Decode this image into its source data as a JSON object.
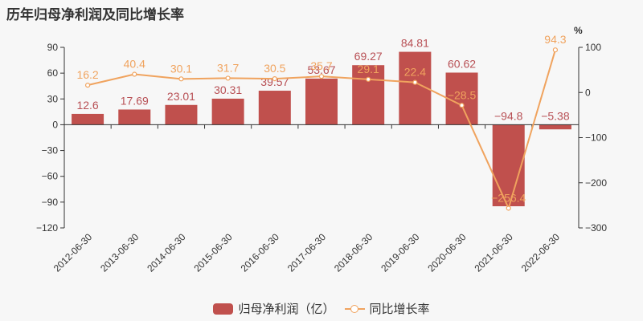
{
  "title": "历年归母净利润及同比增长率",
  "colors": {
    "bar": "#c0504d",
    "line": "#f0a35e",
    "bar_label": "#b85055",
    "axis": "#333333"
  },
  "legend": {
    "bar_label": "归母净利润（亿）",
    "line_label": "同比增长率"
  },
  "right_axis_unit": "%",
  "chart_data": {
    "type": "bar+line",
    "title": "历年归母净利润及同比增长率",
    "categories": [
      "2012-06-30",
      "2013-06-30",
      "2014-06-30",
      "2015-06-30",
      "2016-06-30",
      "2017-06-30",
      "2018-06-30",
      "2019-06-30",
      "2020-06-30",
      "2021-06-30",
      "2022-06-30"
    ],
    "series": [
      {
        "name": "归母净利润（亿）",
        "type": "bar",
        "axis": "left",
        "values": [
          12.6,
          17.69,
          23.01,
          30.31,
          39.57,
          53.67,
          69.27,
          84.81,
          60.62,
          -94.8,
          -5.38
        ]
      },
      {
        "name": "同比增长率",
        "type": "line",
        "axis": "right",
        "values": [
          16.2,
          40.4,
          30.1,
          31.7,
          30.5,
          35.7,
          29.1,
          22.4,
          -28.5,
          -256.4,
          94.3
        ]
      }
    ],
    "left_axis": {
      "min": -120,
      "max": 90,
      "ticks": [
        90,
        60,
        30,
        0,
        -30,
        -60,
        -90,
        -120
      ]
    },
    "right_axis": {
      "min": -300,
      "max": 100,
      "unit": "%",
      "ticks": [
        100,
        0,
        -100,
        -200,
        -300
      ]
    },
    "grid": false,
    "legend_position": "bottom"
  }
}
